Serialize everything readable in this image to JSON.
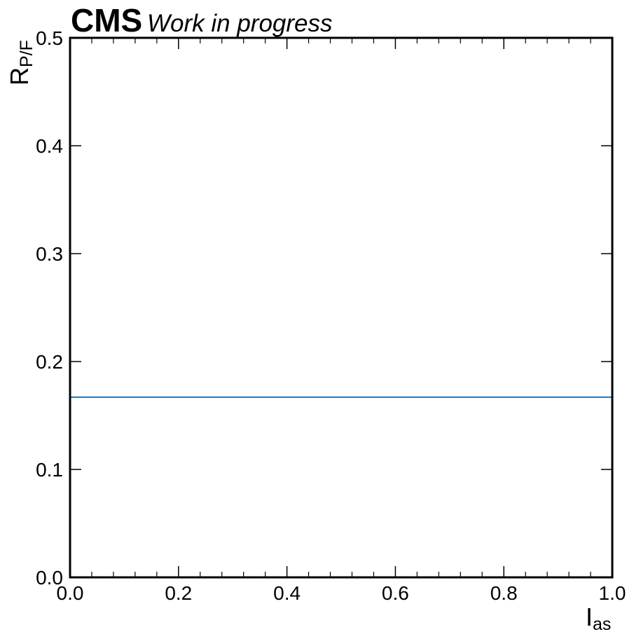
{
  "header": {
    "experiment": "CMS",
    "status": "Work in progress"
  },
  "chart_data": {
    "type": "line",
    "xlabel": "I",
    "xlabel_sub": "as",
    "ylabel": "R",
    "ylabel_sub": "P/F",
    "xlim": [
      0.0,
      1.0
    ],
    "ylim": [
      0.0,
      0.5
    ],
    "x_ticks": [
      "0.0",
      "0.2",
      "0.4",
      "0.6",
      "0.8",
      "1.0"
    ],
    "x_tick_values": [
      0.0,
      0.2,
      0.4,
      0.6,
      0.8,
      1.0
    ],
    "y_ticks": [
      "0.0",
      "0.1",
      "0.2",
      "0.3",
      "0.4",
      "0.5"
    ],
    "y_tick_values": [
      0.0,
      0.1,
      0.2,
      0.3,
      0.4,
      0.5
    ],
    "grid": false,
    "series": [
      {
        "x": [
          0.0,
          1.0
        ],
        "y": [
          0.167,
          0.167
        ],
        "color": "#1f77b4"
      }
    ]
  }
}
